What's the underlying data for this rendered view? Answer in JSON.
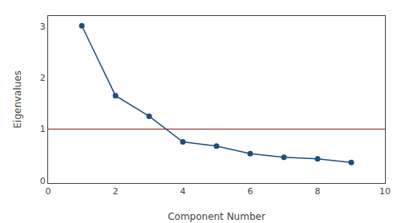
{
  "chart_data": {
    "type": "line",
    "x": [
      1,
      2,
      3,
      4,
      5,
      6,
      7,
      8,
      9
    ],
    "values": [
      3.01,
      1.65,
      1.25,
      0.75,
      0.67,
      0.52,
      0.45,
      0.42,
      0.35
    ],
    "color": "#1F4E79",
    "marker": "circle",
    "xlabel": "Component Number",
    "ylabel": "Eigenvalues",
    "xlim": [
      0,
      10
    ],
    "ylim": [
      -0.05,
      3.2
    ],
    "xticks": [
      0,
      2,
      4,
      6,
      8,
      10
    ],
    "yticks": [
      0,
      1,
      2,
      3
    ],
    "hline": {
      "value": 1.0,
      "color": "#8B1A1A"
    },
    "grid": false
  }
}
